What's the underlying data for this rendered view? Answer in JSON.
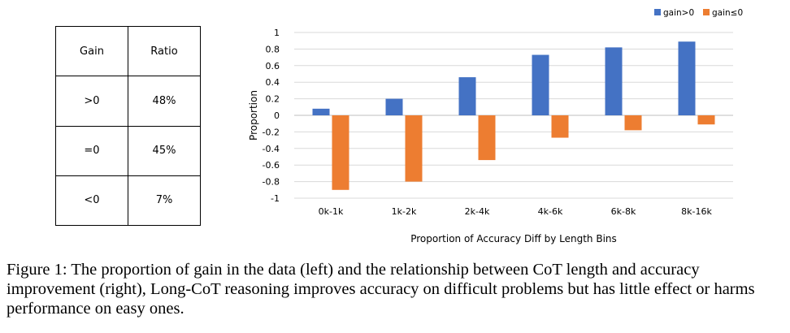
{
  "table": {
    "headers": [
      "Gain",
      "Ratio"
    ],
    "rows": [
      {
        "gain": ">0",
        "ratio": "48%"
      },
      {
        "gain": "=0",
        "ratio": "45%"
      },
      {
        "gain": "<0",
        "ratio": "7%"
      }
    ]
  },
  "chart_data": {
    "type": "bar",
    "categories": [
      "0k-1k",
      "1k-2k",
      "2k-4k",
      "4k-6k",
      "6k-8k",
      "8k-16k"
    ],
    "series": [
      {
        "name": "gain>0",
        "color": "#4472C4",
        "values": [
          0.08,
          0.2,
          0.46,
          0.73,
          0.82,
          0.89
        ]
      },
      {
        "name": "gain≤0",
        "color": "#ED7D31",
        "values": [
          -0.9,
          -0.8,
          -0.54,
          -0.27,
          -0.18,
          -0.11
        ]
      }
    ],
    "title": "",
    "xlabel": "Proportion of Accuracy Diff by Length Bins",
    "ylabel": "Proportion",
    "ylim": [
      -1,
      1
    ],
    "yticks": [
      1,
      0.8,
      0.6,
      0.4,
      0.2,
      0,
      -0.2,
      -0.4,
      -0.6,
      -0.8,
      -1
    ],
    "ytick_labels": [
      "1",
      "0.8",
      "0.6",
      "0.4",
      "0.2",
      "0",
      "-0.2",
      "-0.4",
      "-0.6",
      "-0.8",
      "-1"
    ],
    "grid": true,
    "legend": "top-right"
  },
  "caption": "Figure 1: The proportion of gain in the data (left) and the relationship between CoT length and accuracy improvement (right), Long-CoT reasoning improves accuracy on difficult problems but has little effect or harms performance on easy ones."
}
